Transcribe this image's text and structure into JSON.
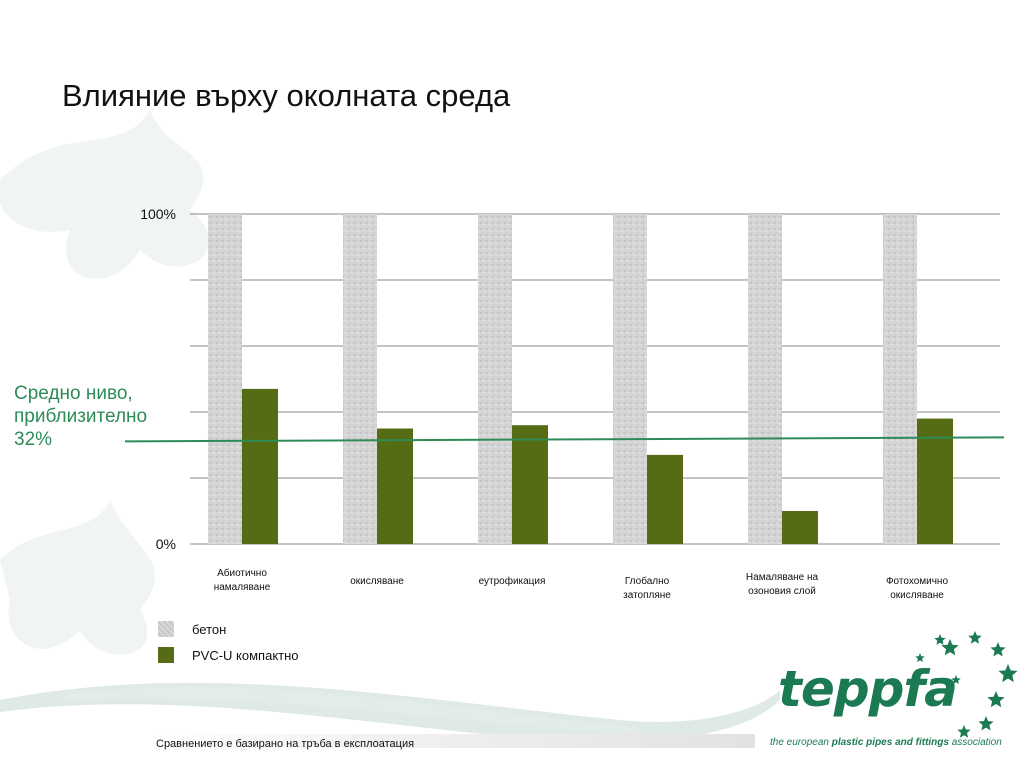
{
  "title": "Влияние върху околната среда",
  "average_label": [
    "Средно ниво,",
    "приблизително",
    "32%"
  ],
  "legend": [
    {
      "label": "бетон",
      "color": "#cfcfcf"
    },
    {
      "label": "PVC-U  компактно",
      "color": "#556b14"
    }
  ],
  "footnote": "Сравнението е базирано на тръба в експлоатация",
  "logo": {
    "name": "teppfa",
    "tagline_pre": "the european ",
    "tagline_bold": "plastic pipes and fittings",
    "tagline_post": " association"
  },
  "colors": {
    "concrete": "#cfcfcf",
    "pvc": "#556b14",
    "average_line": "#2e8b57",
    "brand": "#1b7a52"
  },
  "chart_data": {
    "type": "bar",
    "categories": [
      [
        "Абиотично",
        "намаляване"
      ],
      [
        "окисляване"
      ],
      [
        "еутрофикация"
      ],
      [
        "Глобално",
        "затопляне"
      ],
      [
        "Намаляване на",
        "озоновия слой"
      ],
      [
        "Фотохомично",
        "окисляване"
      ]
    ],
    "series": [
      {
        "name": "бетон",
        "values": [
          100,
          100,
          100,
          100,
          100,
          100
        ]
      },
      {
        "name": "PVC-U  компактно",
        "values": [
          47,
          35,
          36,
          27,
          10,
          38
        ]
      }
    ],
    "average": 32,
    "ytick_labels": [
      {
        "value": 0,
        "label": "0%"
      },
      {
        "value": 100,
        "label": "100%"
      }
    ],
    "ylim": [
      0,
      100
    ],
    "gridlines": [
      0,
      20,
      40,
      60,
      80,
      100
    ],
    "legend_position": "bottom-left"
  }
}
